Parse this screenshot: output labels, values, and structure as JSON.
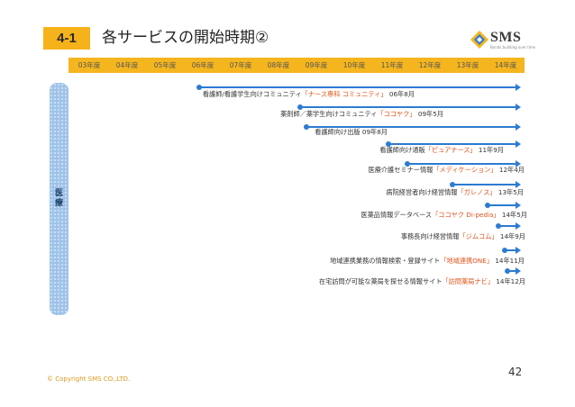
{
  "header": {
    "badge": "4-1",
    "title": "各サービスの開始時期②",
    "logo_text": "SMS",
    "logo_sub": "Bonds building over time"
  },
  "years": [
    "03年度",
    "04年度",
    "05年度",
    "06年度",
    "07年度",
    "08年度",
    "09年度",
    "10年度",
    "11年度",
    "12年度",
    "13年度",
    "14年度"
  ],
  "sidebar": {
    "label_1": "医",
    "label_2": "療"
  },
  "services": [
    {
      "pre": "看護師/看護学生向けコミュニティ",
      "hl": "「ナース専科 コミュニティ」",
      "post": "06年8月"
    },
    {
      "pre": "薬剤師／薬学生向けコミュニティ",
      "hl": "「ココヤク」",
      "post": "09年5月"
    },
    {
      "pre": "看護師向け出版",
      "hl": "",
      "post": "09年8月"
    },
    {
      "pre": "看護師向け通販",
      "hl": "「ピュアナース」",
      "post": "11年9月"
    },
    {
      "pre": "医療介護セミナー情報",
      "hl": "「メディケーション」",
      "post": "12年4月"
    },
    {
      "pre": "病院経営者向け経営情報",
      "hl": "「ガレノス」",
      "post": "13年5月"
    },
    {
      "pre": "医薬品情報データベース",
      "hl": "「ココヤク Di-pedia」",
      "post": "14年5月"
    },
    {
      "pre": "事務長向け経営情報",
      "hl": "「ジムコム」",
      "post": "14年9月"
    },
    {
      "pre": "地域連携業務の情報検索・登録サイト",
      "hl": "「地域連携ONE」",
      "post": "14年11月"
    },
    {
      "pre": "在宅訪問が可能な薬局を探せる情報サイト",
      "hl": "「訪問薬局ナビ」",
      "post": "14年12月"
    }
  ],
  "footer": {
    "copyright": "© Copyright SMS CO.,LTD.",
    "page_number": "42"
  },
  "colors": {
    "accent": "#f4b51f",
    "line": "#2d7bd1",
    "highlight": "#e0531b",
    "sidebar": "#9fc3e8"
  }
}
